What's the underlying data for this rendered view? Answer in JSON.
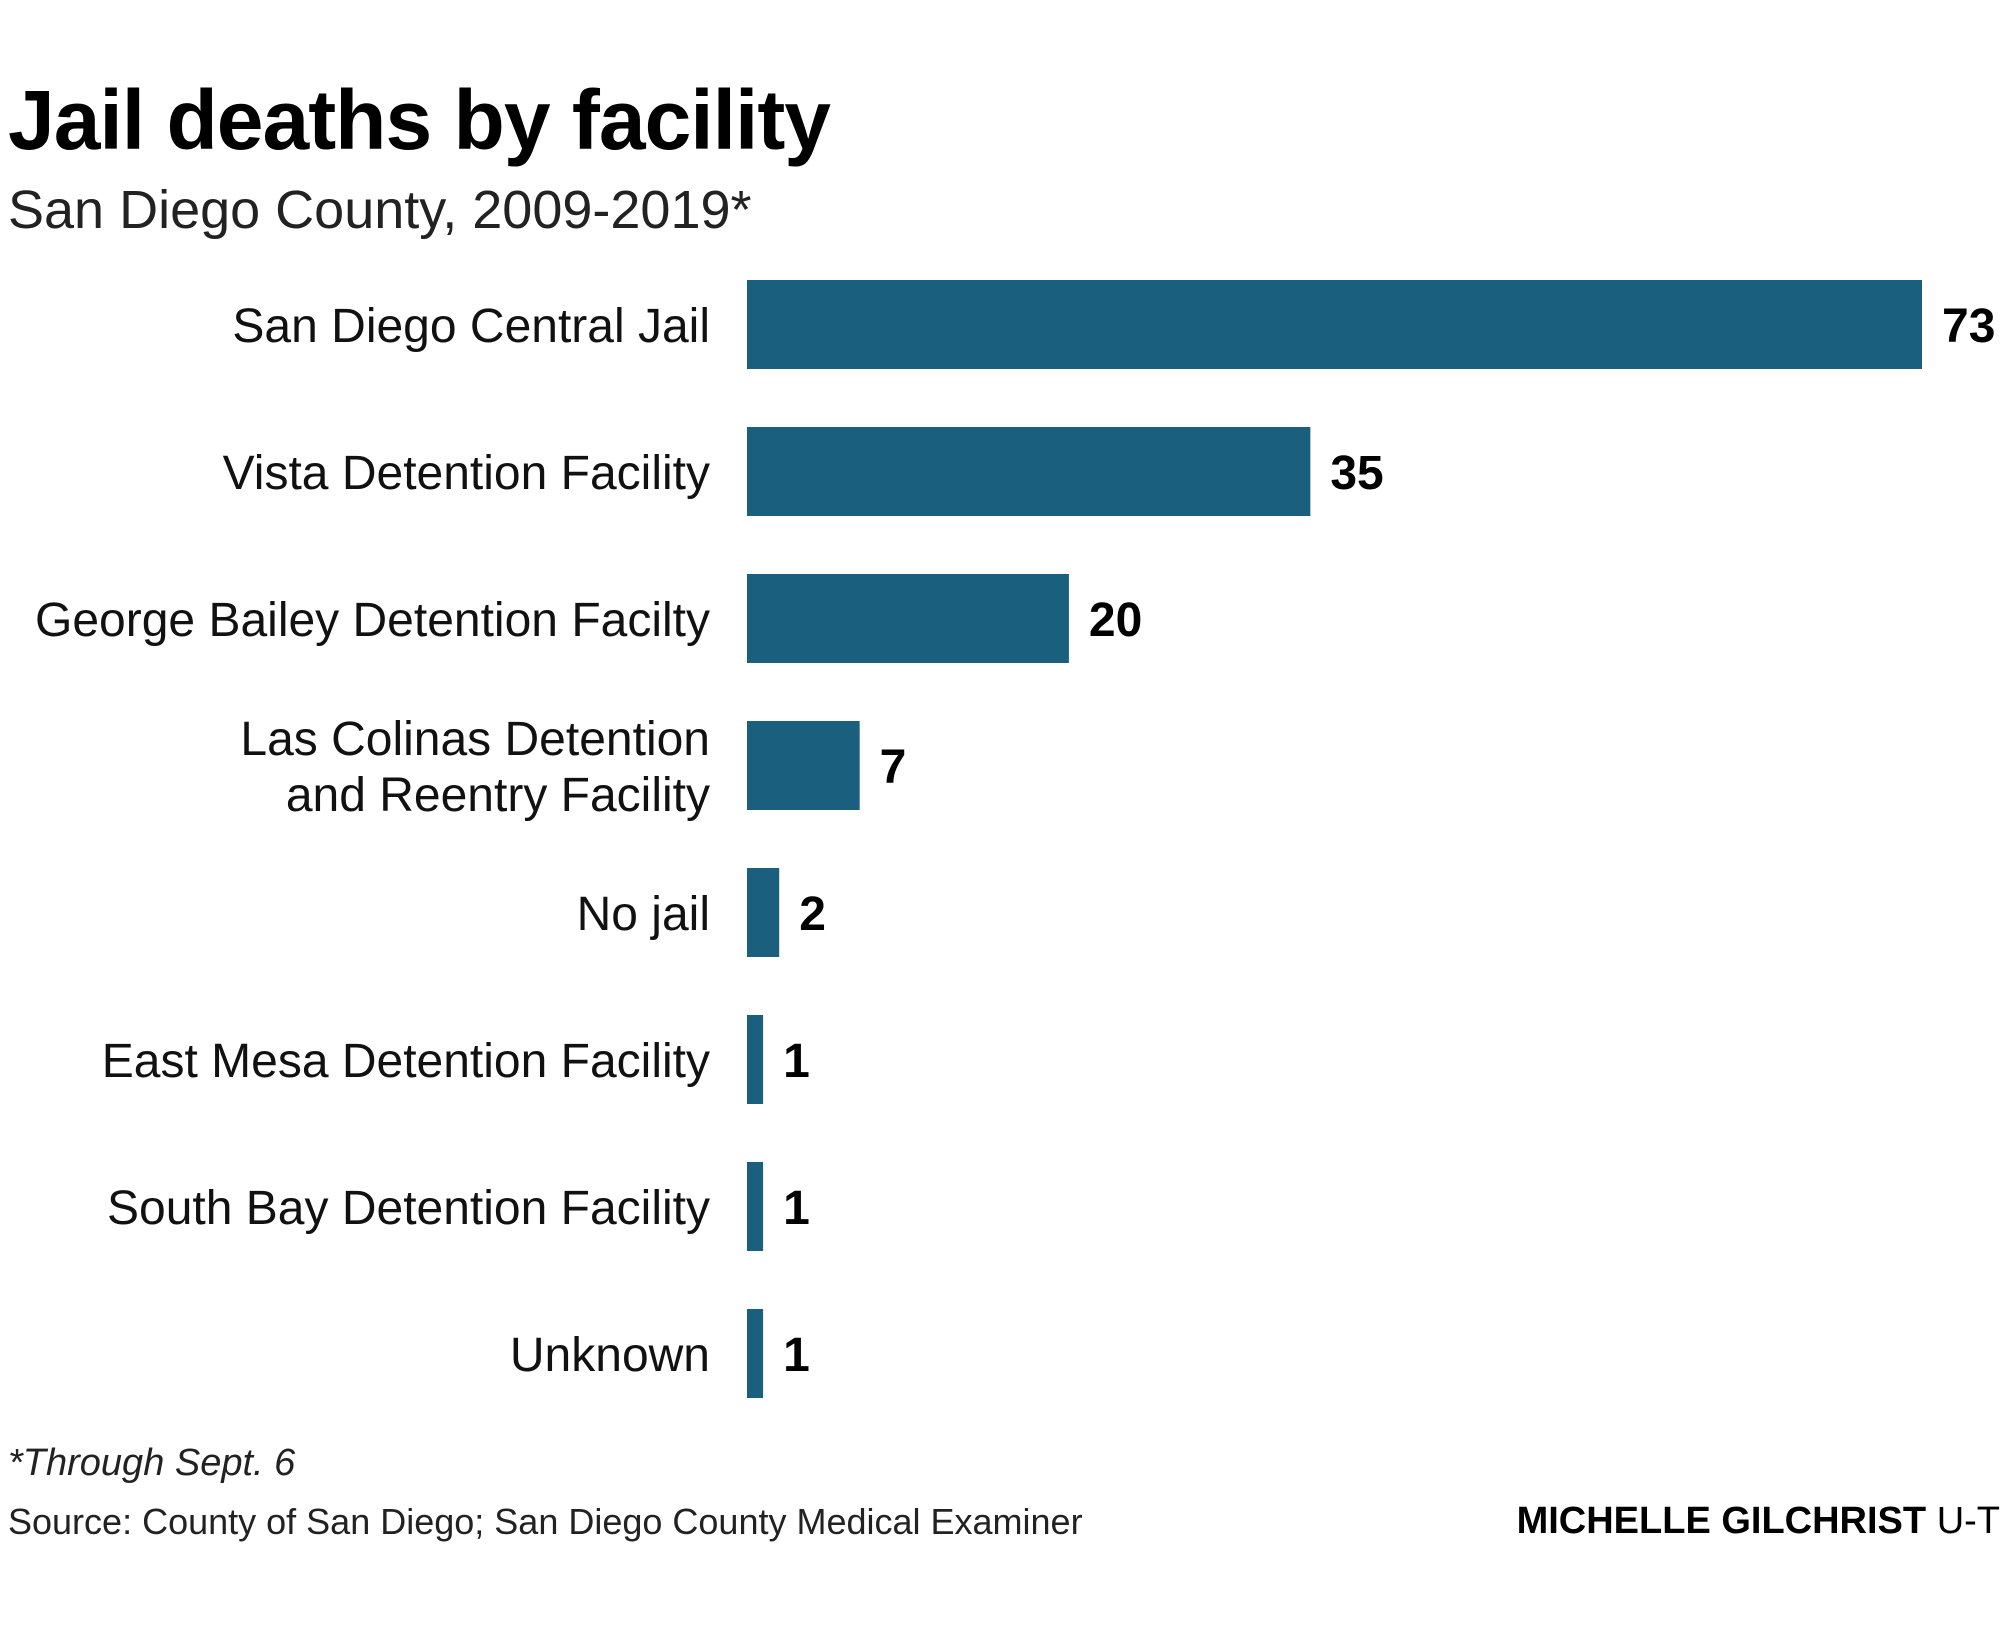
{
  "header": {
    "title": "Jail deaths by facility",
    "subtitle": "San Diego County, 2009-2019*"
  },
  "footer": {
    "footnote": "*Through Sept. 6",
    "source": "Source: County of San Diego; San Diego County Medical Examiner",
    "credit_name": "MICHELLE GILCHRIST",
    "credit_org": "U-T"
  },
  "colors": {
    "bar": "#1a5f7e",
    "label": "#111111",
    "value": "#000000"
  },
  "chart_data": {
    "type": "bar",
    "orientation": "horizontal",
    "title": "Jail deaths by facility",
    "subtitle": "San Diego County, 2009-2019*",
    "categories": [
      [
        "San Diego Central Jail"
      ],
      [
        "Vista Detention Facility"
      ],
      [
        "George Bailey Detention Facilty"
      ],
      [
        "Las Colinas Detention",
        "and Reentry Facility"
      ],
      [
        "No jail"
      ],
      [
        "East Mesa Detention Facility"
      ],
      [
        "South Bay Detention Facility"
      ],
      [
        "Unknown"
      ]
    ],
    "values": [
      73,
      35,
      20,
      7,
      2,
      1,
      1,
      1
    ],
    "xlim": [
      0,
      73
    ],
    "grid": false,
    "legend": "none",
    "data_labels": true
  }
}
